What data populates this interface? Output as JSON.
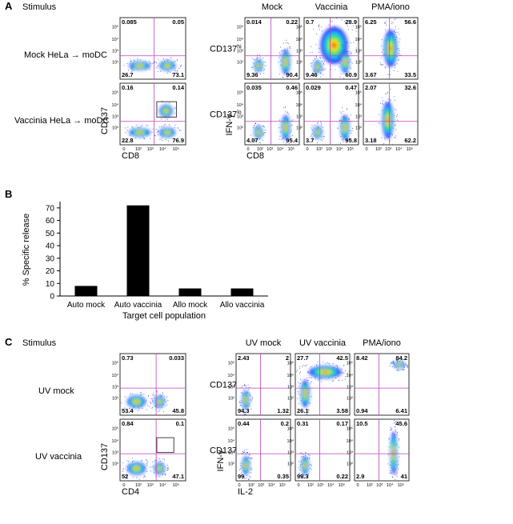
{
  "panel_a": {
    "letter": "A",
    "stimulus_label": "Stimulus",
    "row_labels": [
      "Mock HeLa → moDC",
      "Vaccinia HeLa → moDC"
    ],
    "left_x_axis": "CD8",
    "left_y_axis": "CD137",
    "column_headers": [
      "Mock",
      "Vaccinia",
      "PMA/iono"
    ],
    "gate_labels": [
      {
        "base": "CD137",
        "sup": "hi"
      },
      {
        "base": "CD137",
        "sup": "lo"
      }
    ],
    "right_y_axis": "IFN-γ",
    "right_x_axis": "CD8",
    "left_plots": [
      [
        "0.085",
        "0.05",
        "26.7",
        "73.1"
      ],
      [
        "0.16",
        "0.14",
        "22.8",
        "76.9"
      ]
    ],
    "right_plots": [
      [
        [
          "0.014",
          "0.22",
          "9.36",
          "90.4"
        ],
        [
          "0.7",
          "28.9",
          "9.46",
          "60.9"
        ],
        [
          "6.25",
          "56.6",
          "3.67",
          "33.5"
        ]
      ],
      [
        [
          "0.035",
          "0.46",
          "4.07",
          "95.4"
        ],
        [
          "0.029",
          "0.47",
          "3.7",
          "95.8"
        ],
        [
          "2.07",
          "32.6",
          "3.18",
          "62.2"
        ]
      ]
    ]
  },
  "chart_data": {
    "type": "bar",
    "letter": "B",
    "ylabel": "% Specific release",
    "xlabel": "Target cell population",
    "categories": [
      "Auto mock",
      "Auto vaccinia",
      "Allo mock",
      "Allo vaccinia"
    ],
    "values": [
      8,
      72,
      6,
      6
    ],
    "color": "#000000",
    "ylim": [
      0,
      75
    ],
    "yticks": [
      0,
      10,
      20,
      30,
      40,
      50,
      60,
      70
    ]
  },
  "panel_c": {
    "letter": "C",
    "stimulus_label": "Stimulus",
    "row_labels": [
      "UV mock",
      "UV vaccinia"
    ],
    "left_x_axis": "CD4",
    "left_y_axis": "CD137",
    "column_headers": [
      "UV mock",
      "UV vaccinia",
      "PMA/iono"
    ],
    "gate_labels": [
      {
        "base": "CD137",
        "sup": "hi"
      },
      {
        "base": "CD137",
        "sup": "lo"
      }
    ],
    "right_y_axis": "IFN-γ",
    "right_x_axis": "IL-2",
    "left_plots": [
      [
        "0.73",
        "0.033",
        "53.4",
        "45.8"
      ],
      [
        "0.84",
        "0.1",
        "52",
        "47.1"
      ]
    ],
    "right_plots": [
      [
        [
          "2.43",
          "2",
          "94.3",
          "1.32"
        ],
        [
          "27.7",
          "42.5",
          "26.1",
          "3.58"
        ],
        [
          "8.42",
          "84.2",
          "0.94",
          "6.41"
        ]
      ],
      [
        [
          "0.44",
          "0.2",
          "99",
          "0.35"
        ],
        [
          "0.31",
          "0.17",
          "99.3",
          "0.22"
        ],
        [
          "10.5",
          "45.6",
          "2.9",
          "41"
        ]
      ]
    ]
  },
  "flow_ticks": [
    "0",
    "10²",
    "10³",
    "10⁴",
    "10⁵"
  ]
}
